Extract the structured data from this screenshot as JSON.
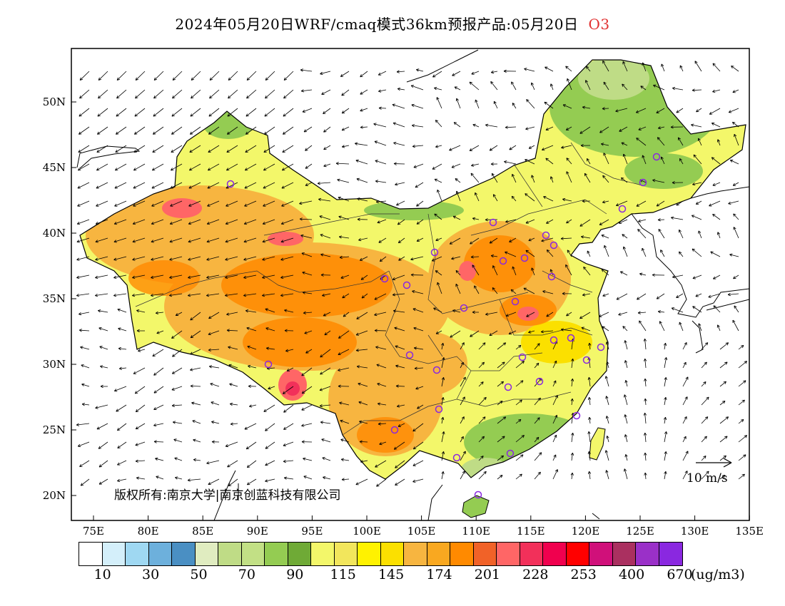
{
  "title": {
    "main": "2024年05月20日WRF/cmaq模式36km预报产品:05月20日",
    "species": "O3"
  },
  "axes": {
    "lat_labels": [
      "50N",
      "45N",
      "40N",
      "35N",
      "30N",
      "25N",
      "20N"
    ],
    "lon_labels": [
      "75E",
      "80E",
      "85E",
      "90E",
      "95E",
      "100E",
      "105E",
      "110E",
      "115E",
      "120E",
      "125E",
      "130E",
      "135E"
    ]
  },
  "legend": {
    "colors": [
      "#ffffff",
      "#d4effa",
      "#9fd8f2",
      "#6db0dc",
      "#4a8fc3",
      "#e0ecc0",
      "#bfdc86",
      "#c2e085",
      "#94cc52",
      "#6faa36",
      "#f3f76a",
      "#f2e65c",
      "#fff200",
      "#fbe000",
      "#f7b540",
      "#f9a820",
      "#ff8a00",
      "#f16228",
      "#ff6666",
      "#f2305a",
      "#f0004e",
      "#ff0000",
      "#d0107a",
      "#aa3060",
      "#9a30c8",
      "#8a28e0"
    ],
    "labels": [
      "10",
      "30",
      "50",
      "70",
      "90",
      "115",
      "145",
      "174",
      "201",
      "228",
      "253",
      "400",
      "670"
    ],
    "unit": "(ug/m3)"
  },
  "annotations": {
    "copyright": "版权所有:南京大学|南京创蓝科技有限公司",
    "wind_scale": "10 m/s"
  },
  "map_colors": {
    "low": "#94cc52",
    "yellow": "#f3f76a",
    "orange": "#f7b540",
    "deep_orange": "#ff8a00",
    "red": "#ff6666",
    "station": "#8a28e0"
  }
}
